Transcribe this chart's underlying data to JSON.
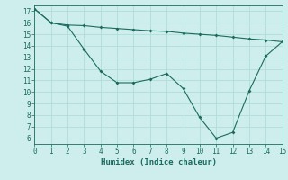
{
  "xlabel": "Humidex (Indice chaleur)",
  "background_color": "#cdeeed",
  "line_color": "#1a6b5e",
  "grid_color": "#b0ddd8",
  "line1_x": [
    0,
    1,
    2,
    3,
    4,
    5,
    6,
    7,
    8,
    9,
    10,
    11,
    12,
    13,
    14,
    15
  ],
  "line1_y": [
    17.2,
    16.0,
    15.8,
    15.75,
    15.6,
    15.5,
    15.4,
    15.3,
    15.25,
    15.1,
    15.0,
    14.9,
    14.75,
    14.6,
    14.5,
    14.35
  ],
  "line2_x": [
    0,
    1,
    2,
    3,
    4,
    5,
    6,
    7,
    8,
    9,
    10,
    11,
    12,
    13,
    14,
    15
  ],
  "line2_y": [
    17.2,
    16.0,
    15.7,
    13.7,
    11.8,
    10.8,
    10.8,
    11.1,
    11.6,
    10.3,
    7.8,
    6.0,
    6.5,
    10.1,
    13.1,
    14.35
  ],
  "xlim": [
    0,
    15
  ],
  "ylim": [
    5.5,
    17.5
  ],
  "xticks": [
    0,
    1,
    2,
    3,
    4,
    5,
    6,
    7,
    8,
    9,
    10,
    11,
    12,
    13,
    14,
    15
  ],
  "yticks": [
    6,
    7,
    8,
    9,
    10,
    11,
    12,
    13,
    14,
    15,
    16,
    17
  ]
}
